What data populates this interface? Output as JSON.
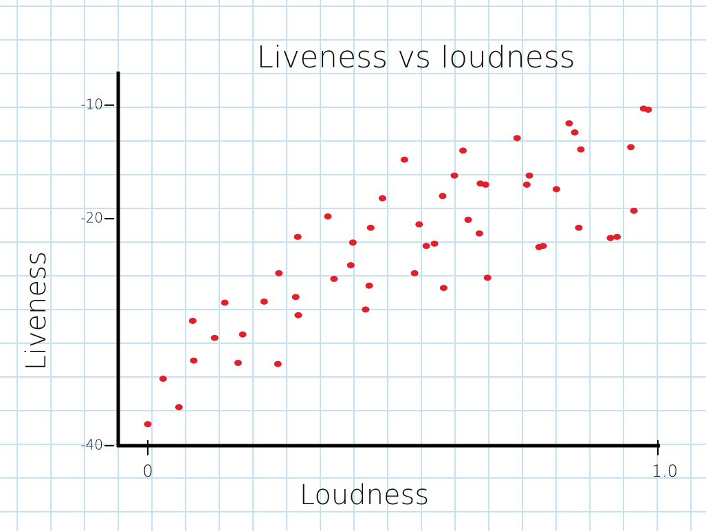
{
  "chart_data": {
    "type": "scatter",
    "title": "Liveness vs loudness",
    "x_label": "Loudness",
    "y_label": "Liveness",
    "color": "#e0202a",
    "xlim": [
      -0.058,
      1.0
    ],
    "xticks": [
      0,
      {
        "value": 1,
        "label": "1.0"
      }
    ],
    "ylim": [
      -40,
      -7.1
    ],
    "yticks": [
      -10,
      -20,
      -40
    ],
    "x": [
      0,
      0.03,
      0.061,
      0.088,
      0.09,
      0.131,
      0.151,
      0.177,
      0.186,
      0.228,
      0.255,
      0.257,
      0.29,
      0.295,
      0.294,
      0.353,
      0.365,
      0.398,
      0.402,
      0.427,
      0.434,
      0.437,
      0.46,
      0.503,
      0.523,
      0.532,
      0.546,
      0.562,
      0.578,
      0.58,
      0.601,
      0.618,
      0.628,
      0.65,
      0.652,
      0.662,
      0.666,
      0.724,
      0.743,
      0.748,
      0.767,
      0.775,
      0.801,
      0.826,
      0.837,
      0.845,
      0.849,
      0.907,
      0.92,
      0.947,
      0.953,
      0.972,
      0.981
    ],
    "values": [
      -38.1,
      -34.1,
      -36.6,
      -29.0,
      -32.5,
      -30.5,
      -27.4,
      -32.7,
      -30.2,
      -27.3,
      -32.8,
      -24.8,
      -26.9,
      -28.5,
      -21.6,
      -19.8,
      -25.3,
      -24.1,
      -22.1,
      -28.0,
      -25.9,
      -20.8,
      -18.2,
      -14.8,
      -24.8,
      -20.5,
      -22.4,
      -22.2,
      -18.0,
      -26.1,
      -16.2,
      -14.0,
      -20.1,
      -21.3,
      -16.9,
      -17.0,
      -25.2,
      -12.9,
      -17.0,
      -16.2,
      -22.5,
      -22.4,
      -17.4,
      -11.6,
      -12.4,
      -20.8,
      -13.9,
      -21.7,
      -21.6,
      -13.7,
      -19.3,
      -10.3,
      -10.4
    ]
  }
}
